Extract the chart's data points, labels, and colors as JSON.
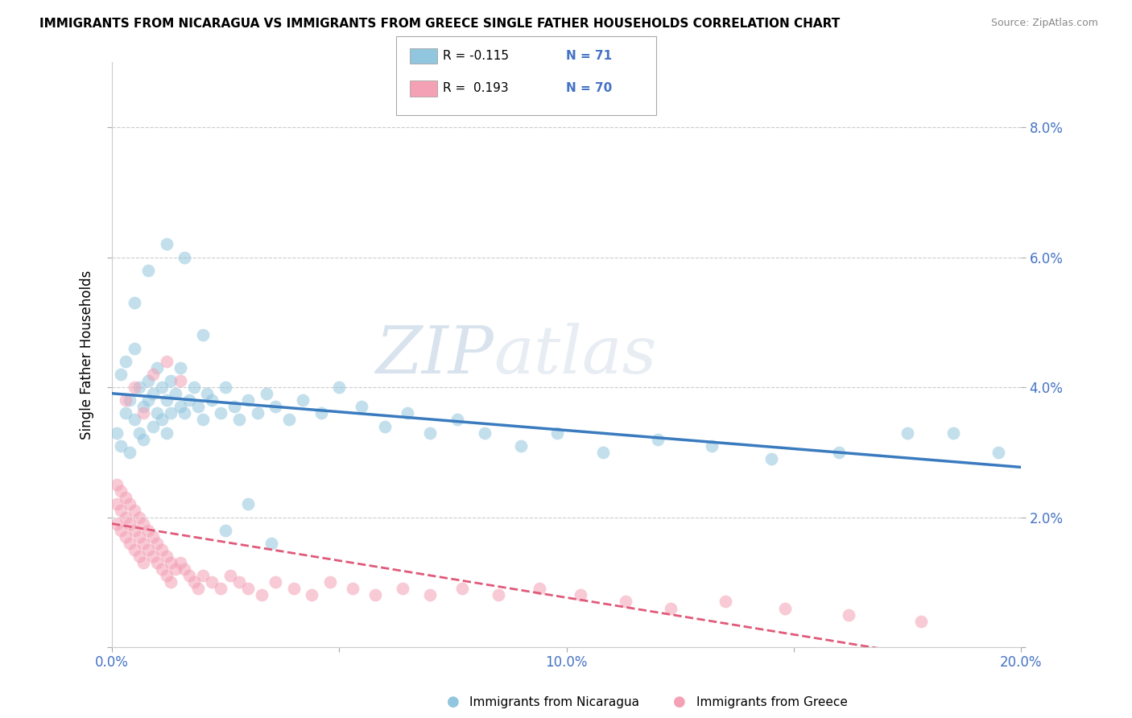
{
  "title": "IMMIGRANTS FROM NICARAGUA VS IMMIGRANTS FROM GREECE SINGLE FATHER HOUSEHOLDS CORRELATION CHART",
  "source": "Source: ZipAtlas.com",
  "ylabel": "Single Father Households",
  "xlim": [
    0.0,
    0.2
  ],
  "ylim": [
    0.0,
    0.09
  ],
  "xticks": [
    0.0,
    0.05,
    0.1,
    0.15,
    0.2
  ],
  "xtick_labels": [
    "0.0%",
    "",
    "10.0%",
    "",
    "20.0%"
  ],
  "yticks": [
    0.0,
    0.02,
    0.04,
    0.06,
    0.08
  ],
  "ytick_labels_right": [
    "",
    "2.0%",
    "4.0%",
    "6.0%",
    "8.0%"
  ],
  "legend1_label": "Immigrants from Nicaragua",
  "legend2_label": "Immigrants from Greece",
  "r1": -0.115,
  "n1": 71,
  "r2": 0.193,
  "n2": 70,
  "blue_color": "#92c5de",
  "pink_color": "#f4a0b5",
  "blue_line_color": "#3a7bbf",
  "pink_line_color": "#e05a7a",
  "axis_label_color": "#4472c4",
  "watermark_zip": "ZIP",
  "watermark_atlas": "atlas",
  "nicaragua_x": [
    0.001,
    0.002,
    0.002,
    0.003,
    0.003,
    0.004,
    0.004,
    0.005,
    0.005,
    0.006,
    0.006,
    0.007,
    0.007,
    0.008,
    0.008,
    0.009,
    0.009,
    0.01,
    0.01,
    0.011,
    0.011,
    0.012,
    0.012,
    0.013,
    0.013,
    0.014,
    0.015,
    0.015,
    0.016,
    0.017,
    0.018,
    0.019,
    0.02,
    0.021,
    0.022,
    0.024,
    0.025,
    0.027,
    0.028,
    0.03,
    0.032,
    0.034,
    0.036,
    0.039,
    0.042,
    0.046,
    0.05,
    0.055,
    0.06,
    0.065,
    0.07,
    0.076,
    0.082,
    0.09,
    0.098,
    0.108,
    0.12,
    0.132,
    0.145,
    0.16,
    0.175,
    0.185,
    0.195,
    0.005,
    0.008,
    0.012,
    0.016,
    0.02,
    0.025,
    0.03,
    0.035
  ],
  "nicaragua_y": [
    0.033,
    0.031,
    0.042,
    0.036,
    0.044,
    0.038,
    0.03,
    0.035,
    0.046,
    0.033,
    0.04,
    0.037,
    0.032,
    0.038,
    0.041,
    0.034,
    0.039,
    0.036,
    0.043,
    0.035,
    0.04,
    0.038,
    0.033,
    0.036,
    0.041,
    0.039,
    0.037,
    0.043,
    0.036,
    0.038,
    0.04,
    0.037,
    0.035,
    0.039,
    0.038,
    0.036,
    0.04,
    0.037,
    0.035,
    0.038,
    0.036,
    0.039,
    0.037,
    0.035,
    0.038,
    0.036,
    0.04,
    0.037,
    0.034,
    0.036,
    0.033,
    0.035,
    0.033,
    0.031,
    0.033,
    0.03,
    0.032,
    0.031,
    0.029,
    0.03,
    0.033,
    0.033,
    0.03,
    0.053,
    0.058,
    0.062,
    0.06,
    0.048,
    0.018,
    0.022,
    0.016
  ],
  "greece_x": [
    0.001,
    0.001,
    0.001,
    0.002,
    0.002,
    0.002,
    0.003,
    0.003,
    0.003,
    0.004,
    0.004,
    0.004,
    0.005,
    0.005,
    0.005,
    0.006,
    0.006,
    0.006,
    0.007,
    0.007,
    0.007,
    0.008,
    0.008,
    0.009,
    0.009,
    0.01,
    0.01,
    0.011,
    0.011,
    0.012,
    0.012,
    0.013,
    0.013,
    0.014,
    0.015,
    0.016,
    0.017,
    0.018,
    0.019,
    0.02,
    0.022,
    0.024,
    0.026,
    0.028,
    0.03,
    0.033,
    0.036,
    0.04,
    0.044,
    0.048,
    0.053,
    0.058,
    0.064,
    0.07,
    0.077,
    0.085,
    0.094,
    0.103,
    0.113,
    0.123,
    0.135,
    0.148,
    0.162,
    0.178,
    0.003,
    0.005,
    0.007,
    0.009,
    0.012,
    0.015
  ],
  "greece_y": [
    0.022,
    0.025,
    0.019,
    0.024,
    0.021,
    0.018,
    0.023,
    0.02,
    0.017,
    0.022,
    0.019,
    0.016,
    0.021,
    0.018,
    0.015,
    0.02,
    0.017,
    0.014,
    0.019,
    0.016,
    0.013,
    0.018,
    0.015,
    0.017,
    0.014,
    0.016,
    0.013,
    0.015,
    0.012,
    0.014,
    0.011,
    0.013,
    0.01,
    0.012,
    0.013,
    0.012,
    0.011,
    0.01,
    0.009,
    0.011,
    0.01,
    0.009,
    0.011,
    0.01,
    0.009,
    0.008,
    0.01,
    0.009,
    0.008,
    0.01,
    0.009,
    0.008,
    0.009,
    0.008,
    0.009,
    0.008,
    0.009,
    0.008,
    0.007,
    0.006,
    0.007,
    0.006,
    0.005,
    0.004,
    0.038,
    0.04,
    0.036,
    0.042,
    0.044,
    0.041
  ]
}
